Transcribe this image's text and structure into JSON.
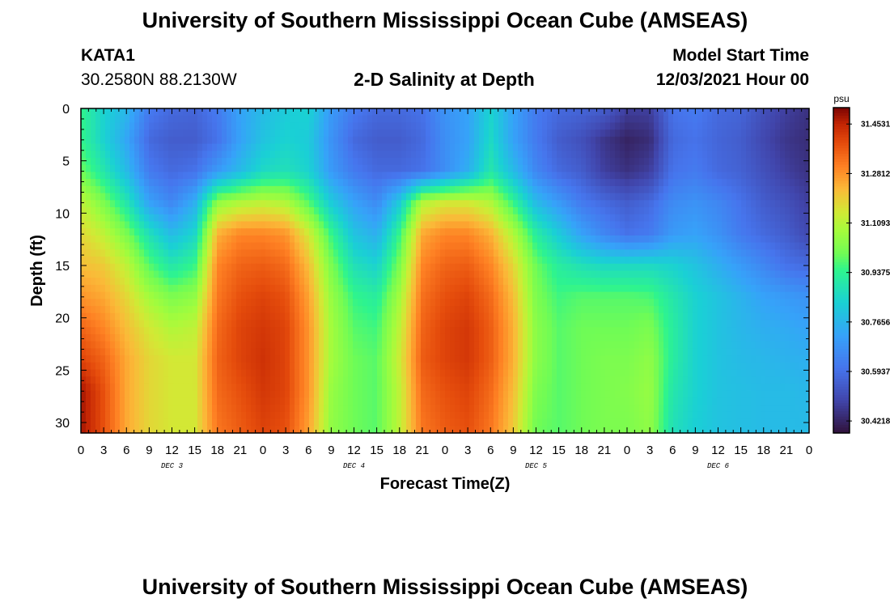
{
  "page": {
    "title": "University of Southern Mississippi Ocean Cube (AMSEAS)",
    "title_repeat": "University of Southern Mississippi Ocean Cube (AMSEAS)",
    "station": "KATA1",
    "coords": "30.2580N  88.2130W",
    "plot_title": "2-D Salinity at Depth",
    "model_start_label": "Model Start Time",
    "model_start_value": "12/03/2021 Hour 00"
  },
  "chart_data": {
    "type": "heatmap",
    "title": "2-D Salinity at Depth",
    "xlabel": "Forecast Time(Z)",
    "ylabel": "Depth (ft)",
    "x_range_hours": [
      0,
      96
    ],
    "ylim": [
      0,
      31
    ],
    "y_ticks": [
      0,
      5,
      10,
      15,
      20,
      25,
      30
    ],
    "x_tick_labels": [
      "0",
      "3",
      "6",
      "9",
      "12",
      "15",
      "18",
      "21",
      "0",
      "3",
      "6",
      "9",
      "12",
      "15",
      "18",
      "21",
      "0",
      "3",
      "6",
      "9",
      "12",
      "15",
      "18",
      "21",
      "0",
      "3",
      "6",
      "9",
      "12",
      "15",
      "18",
      "21",
      "0"
    ],
    "day_labels": [
      {
        "label": "DEC 3",
        "hour": 12
      },
      {
        "label": "DEC 4",
        "hour": 36
      },
      {
        "label": "DEC 5",
        "hour": 60
      },
      {
        "label": "DEC 6",
        "hour": 84
      }
    ],
    "colorbar": {
      "unit": "psu",
      "vmin": 30.38,
      "vmax": 31.51,
      "tick_labels": [
        "31.4531",
        "31.2812",
        "31.1093",
        "30.9375",
        "30.7656",
        "30.5937",
        "30.4218"
      ],
      "tick_values": [
        31.4531,
        31.2812,
        31.1093,
        30.9375,
        30.7656,
        30.5937,
        30.4218
      ]
    },
    "depths_ft": [
      0,
      3,
      6,
      9,
      12,
      15,
      18,
      21,
      24,
      27,
      31
    ],
    "times_hr": [
      0,
      3,
      6,
      9,
      12,
      15,
      18,
      21,
      24,
      27,
      30,
      33,
      36,
      39,
      42,
      45,
      48,
      51,
      54,
      57,
      60,
      63,
      66,
      69,
      72,
      75,
      78,
      81,
      84,
      87,
      90,
      93,
      96
    ],
    "salinity_psu": [
      [
        30.95,
        30.84,
        30.77,
        30.62,
        30.58,
        30.57,
        30.62,
        30.72,
        30.78,
        30.82,
        30.84,
        30.7,
        30.62,
        30.58,
        30.58,
        30.6,
        30.68,
        30.72,
        30.84,
        30.72,
        30.62,
        30.58,
        30.57,
        30.55,
        30.48,
        30.48,
        30.6,
        30.62,
        30.58,
        30.57,
        30.52,
        30.48,
        30.45
      ],
      [
        30.95,
        30.84,
        30.73,
        30.58,
        30.55,
        30.55,
        30.6,
        30.72,
        30.8,
        30.84,
        30.82,
        30.68,
        30.58,
        30.55,
        30.55,
        30.58,
        30.67,
        30.72,
        30.86,
        30.72,
        30.62,
        30.55,
        30.52,
        30.46,
        30.42,
        30.44,
        30.58,
        30.6,
        30.57,
        30.55,
        30.5,
        30.46,
        30.44
      ],
      [
        31.0,
        30.9,
        30.78,
        30.62,
        30.58,
        30.6,
        30.7,
        30.78,
        30.86,
        30.88,
        30.84,
        30.7,
        30.62,
        30.58,
        30.58,
        30.6,
        30.67,
        30.75,
        30.9,
        30.78,
        30.65,
        30.58,
        30.55,
        30.48,
        30.45,
        30.48,
        30.6,
        30.62,
        30.58,
        30.56,
        30.52,
        30.48,
        30.45
      ],
      [
        31.12,
        31.02,
        30.9,
        30.72,
        30.65,
        30.75,
        31.05,
        31.1,
        31.12,
        31.1,
        30.98,
        30.82,
        30.72,
        30.66,
        30.82,
        31.1,
        31.15,
        31.15,
        31.1,
        30.95,
        30.78,
        30.7,
        30.62,
        30.58,
        30.55,
        30.58,
        30.66,
        30.68,
        30.65,
        30.6,
        30.55,
        30.52,
        30.48
      ],
      [
        31.18,
        31.12,
        31.02,
        30.88,
        30.78,
        30.85,
        31.24,
        31.3,
        31.3,
        31.28,
        31.15,
        30.95,
        30.8,
        30.75,
        30.95,
        31.25,
        31.3,
        31.3,
        31.24,
        31.1,
        30.92,
        30.82,
        30.72,
        30.65,
        30.6,
        30.62,
        30.7,
        30.72,
        30.68,
        30.62,
        30.58,
        30.55,
        30.5
      ],
      [
        31.22,
        31.2,
        31.12,
        30.98,
        30.9,
        30.95,
        31.3,
        31.35,
        31.36,
        31.34,
        31.22,
        31.02,
        30.88,
        30.84,
        31.02,
        31.3,
        31.35,
        31.36,
        31.3,
        31.18,
        31.0,
        30.92,
        30.88,
        30.86,
        30.86,
        30.86,
        30.84,
        30.8,
        30.75,
        30.7,
        30.65,
        30.6,
        30.58
      ],
      [
        31.28,
        31.25,
        31.18,
        31.08,
        31.02,
        31.05,
        31.32,
        31.38,
        31.4,
        31.38,
        31.26,
        31.06,
        30.95,
        30.92,
        31.08,
        31.33,
        31.38,
        31.4,
        31.34,
        31.22,
        31.02,
        30.96,
        30.98,
        30.98,
        30.98,
        30.97,
        30.9,
        30.84,
        30.8,
        30.76,
        30.72,
        30.7,
        30.68
      ],
      [
        31.35,
        31.3,
        31.22,
        31.15,
        31.1,
        31.12,
        31.34,
        31.4,
        31.42,
        31.4,
        31.28,
        31.08,
        30.98,
        30.96,
        31.12,
        31.35,
        31.4,
        31.42,
        31.36,
        31.24,
        31.04,
        30.98,
        31.0,
        31.0,
        31.0,
        31.02,
        30.92,
        30.84,
        30.8,
        30.77,
        30.75,
        30.74,
        30.72
      ],
      [
        31.4,
        31.35,
        31.25,
        31.18,
        31.15,
        31.15,
        31.35,
        31.4,
        31.43,
        31.4,
        31.28,
        31.08,
        31.0,
        30.98,
        31.14,
        31.36,
        31.4,
        31.42,
        31.36,
        31.24,
        31.04,
        30.98,
        31.0,
        31.02,
        31.02,
        31.05,
        30.92,
        30.84,
        30.8,
        30.78,
        30.77,
        30.76,
        30.75
      ],
      [
        31.48,
        31.38,
        31.25,
        31.18,
        31.15,
        31.15,
        31.34,
        31.38,
        31.42,
        31.4,
        31.28,
        31.06,
        31.0,
        30.98,
        31.12,
        31.34,
        31.38,
        31.4,
        31.34,
        31.22,
        31.02,
        30.98,
        31.0,
        31.02,
        31.03,
        31.06,
        30.9,
        30.84,
        30.8,
        30.79,
        30.78,
        30.78,
        30.77
      ],
      [
        31.48,
        31.38,
        31.25,
        31.18,
        31.15,
        31.15,
        31.32,
        31.36,
        31.4,
        31.38,
        31.26,
        31.05,
        31.0,
        30.98,
        31.12,
        31.32,
        31.36,
        31.38,
        31.32,
        31.2,
        31.0,
        30.98,
        31.0,
        31.02,
        31.02,
        31.05,
        30.88,
        30.83,
        30.8,
        30.79,
        30.78,
        30.78,
        30.78
      ]
    ]
  }
}
